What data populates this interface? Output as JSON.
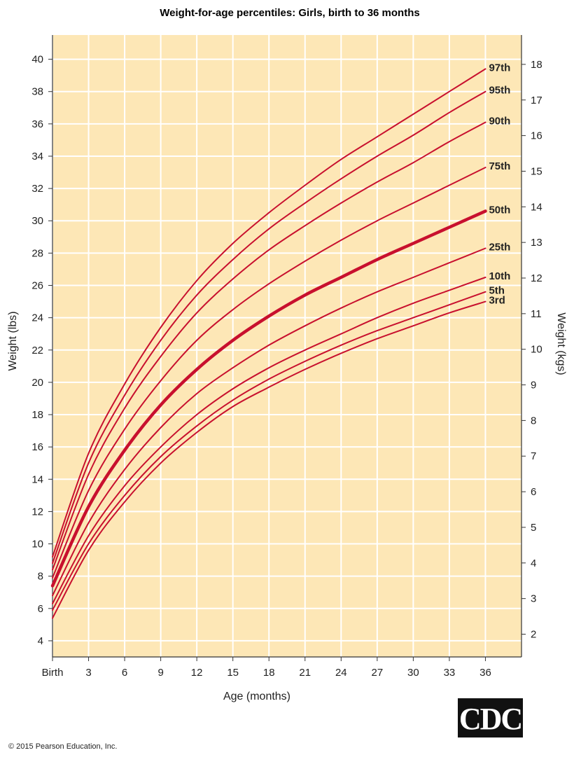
{
  "chart_data": {
    "type": "line",
    "title": "Weight-for-age percentiles: Girls, birth to 36 months",
    "xlabel": "Age (months)",
    "ylabel": "Weight (lbs)",
    "ylabel_right": "Weight (kgs)",
    "xlim": [
      0,
      39
    ],
    "ylim": [
      3,
      41.5
    ],
    "x_ticks": [
      0,
      3,
      6,
      9,
      12,
      15,
      18,
      21,
      24,
      27,
      30,
      33,
      36
    ],
    "x_tick_labels": [
      "Birth",
      "3",
      "6",
      "9",
      "12",
      "15",
      "18",
      "21",
      "24",
      "27",
      "30",
      "33",
      "36"
    ],
    "y_ticks": [
      4,
      6,
      8,
      10,
      12,
      14,
      16,
      18,
      20,
      22,
      24,
      26,
      28,
      30,
      32,
      34,
      36,
      38,
      40
    ],
    "y_tick_labels": [
      "4",
      "6",
      "8",
      "10",
      "12",
      "14",
      "16",
      "18",
      "20",
      "22",
      "24",
      "26",
      "28",
      "30",
      "32",
      "34",
      "36",
      "38",
      "40"
    ],
    "y2_ticks": [
      2,
      3,
      4,
      5,
      6,
      7,
      8,
      9,
      10,
      11,
      12,
      13,
      14,
      15,
      16,
      17,
      18
    ],
    "y2_tick_labels": [
      "2",
      "3",
      "4",
      "5",
      "6",
      "7",
      "8",
      "9",
      "10",
      "11",
      "12",
      "13",
      "14",
      "15",
      "16",
      "17",
      "18"
    ],
    "grid": true,
    "x": [
      0,
      3,
      6,
      9,
      12,
      15,
      18,
      21,
      24,
      27,
      30,
      33,
      36
    ],
    "series": [
      {
        "name": "97th",
        "values": [
          9.2,
          15.6,
          19.9,
          23.4,
          26.3,
          28.6,
          30.5,
          32.2,
          33.8,
          35.2,
          36.6,
          38.0,
          39.4
        ]
      },
      {
        "name": "95th",
        "values": [
          8.8,
          15.0,
          19.2,
          22.6,
          25.4,
          27.6,
          29.5,
          31.1,
          32.6,
          34.0,
          35.3,
          36.7,
          38.0
        ]
      },
      {
        "name": "90th",
        "values": [
          8.4,
          14.3,
          18.4,
          21.6,
          24.3,
          26.4,
          28.2,
          29.7,
          31.1,
          32.4,
          33.6,
          34.9,
          36.1
        ]
      },
      {
        "name": "75th",
        "values": [
          7.9,
          13.3,
          17.1,
          20.1,
          22.6,
          24.5,
          26.1,
          27.5,
          28.8,
          30.0,
          31.1,
          32.2,
          33.3
        ]
      },
      {
        "name": "50th",
        "values": [
          7.4,
          12.3,
          15.8,
          18.6,
          20.8,
          22.6,
          24.1,
          25.4,
          26.5,
          27.6,
          28.6,
          29.6,
          30.6
        ]
      },
      {
        "name": "25th",
        "values": [
          6.8,
          11.3,
          14.6,
          17.2,
          19.3,
          20.9,
          22.3,
          23.5,
          24.6,
          25.6,
          26.5,
          27.4,
          28.3
        ]
      },
      {
        "name": "10th",
        "values": [
          6.3,
          10.5,
          13.6,
          16.0,
          18.0,
          19.6,
          20.9,
          22.0,
          23.0,
          24.0,
          24.9,
          25.7,
          26.5
        ]
      },
      {
        "name": "5th",
        "values": [
          5.9,
          10.0,
          13.0,
          15.4,
          17.3,
          18.9,
          20.2,
          21.3,
          22.3,
          23.2,
          24.0,
          24.8,
          25.6
        ]
      },
      {
        "name": "3rd",
        "values": [
          5.4,
          9.6,
          12.6,
          15.0,
          16.9,
          18.5,
          19.7,
          20.8,
          21.8,
          22.7,
          23.5,
          24.3,
          25.0
        ]
      }
    ],
    "colors": {
      "plot_background": "#fde7b6",
      "grid": "#ffffff",
      "line": "#c8102e",
      "median_line": "#c8102e"
    }
  },
  "footer": {
    "copyright": "© 2015 Pearson Education, Inc.",
    "logo_text": "CDC"
  }
}
